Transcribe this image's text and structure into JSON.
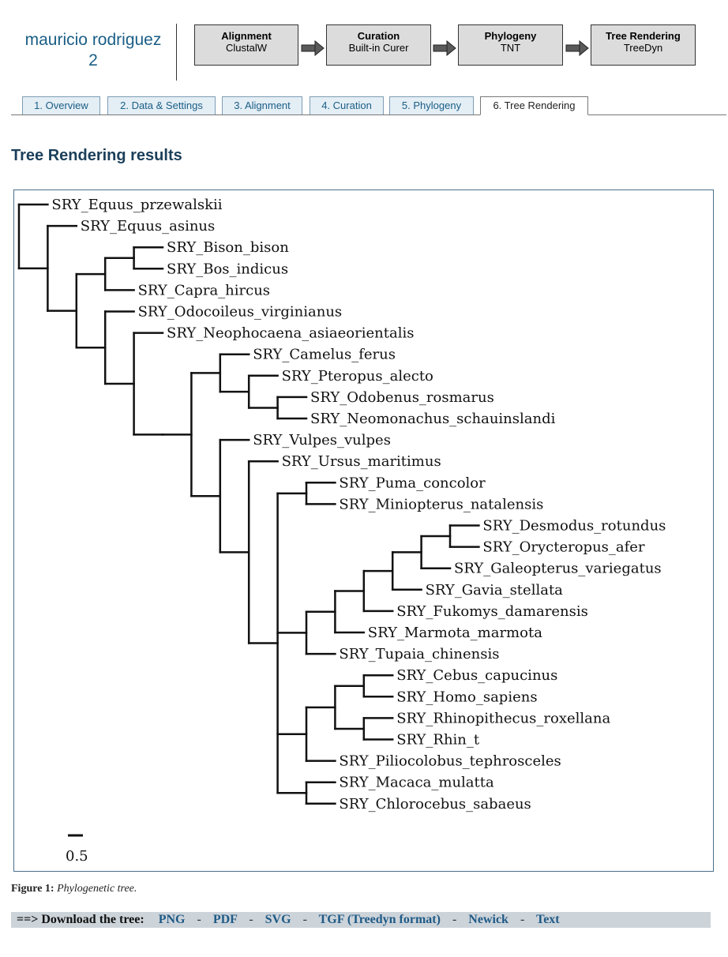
{
  "header": {
    "user_name_line1": "mauricio rodriguez",
    "user_name_line2": "2"
  },
  "pipeline": [
    {
      "title": "Alignment",
      "tool": "ClustalW"
    },
    {
      "title": "Curation",
      "tool": "Built-in Curer"
    },
    {
      "title": "Phylogeny",
      "tool": "TNT"
    },
    {
      "title": "Tree Rendering",
      "tool": "TreeDyn"
    }
  ],
  "tabs": [
    {
      "label": "1. Overview"
    },
    {
      "label": "2. Data & Settings"
    },
    {
      "label": "3. Alignment"
    },
    {
      "label": "4. Curation"
    },
    {
      "label": "5. Phylogeny"
    },
    {
      "label": "6. Tree Rendering",
      "active": true
    }
  ],
  "page_title": "Tree Rendering results",
  "tree": {
    "leaves": [
      "SRY_Equus_przewalskii",
      "SRY_Equus_asinus",
      "SRY_Bison_bison",
      "SRY_Bos_indicus",
      "SRY_Capra_hircus",
      "SRY_Odocoileus_virginianus",
      "SRY_Neophocaena_asiaeorientalis",
      "SRY_Camelus_ferus",
      "SRY_Pteropus_alecto",
      "SRY_Odobenus_rosmarus",
      "SRY_Neomonachus_schauinslandi",
      "SRY_Vulpes_vulpes",
      "SRY_Ursus_maritimus",
      "SRY_Puma_concolor",
      "SRY_Miniopterus_natalensis",
      "SRY_Desmodus_rotundus",
      "SRY_Orycteropus_afer",
      "SRY_Galeopterus_variegatus",
      "SRY_Gavia_stellata",
      "SRY_Fukomys_damarensis",
      "SRY_Marmota_marmota",
      "SRY_Tupaia_chinensis",
      "SRY_Cebus_capucinus",
      "SRY_Homo_sapiens",
      "SRY_Rhinopithecus_roxellana",
      "SRY_Rhin_t",
      "SRY_Piliocolobus_tephrosceles",
      "SRY_Macaca_mulatta",
      "SRY_Chlorocebus_sabaeus"
    ],
    "newick": "(SRY_Chlorocebus_sabaeus:1,(SRY_Macaca_mulatta:1,(((SRY_Rhinopithecus_roxellana:1,SRY_Rhin_t:1):1,SRY_Piliocolobus_tephrosceles:1):1,(SRY_Homo_sapiens:1,(SRY_Cebus_capucinus:1,(((SRY_Tupaia_chinensis:1,(SRY_Marmota_marmota:1,(SRY_Gavia_stellata:1,SRY_Fukomys_damarensis:1):1):1):1,(SRY_Galeopterus_variegatus:1,(SRY_Orycteropus_afer:1,((SRY_Equus_przewalskii:1,SRY_Equus_asinus:1):1,((((((SRY_Bison_bison:1,SRY_Bos_indicus:1):1,SRY_Capra_hircus:1):1,SRY_Odocoileus_virginianus:1):1,SRY_Neophocaena_asiaeorientalis:1):1,SRY_Camelus_ferus:1):1,SRY_Pteropus_alecto:1):1,(((SRY_Odobenus_rosmarus:1,SRY_Neomonachus_schauinslandi:1):1,(SRY_Vulpes_vulpes:1,SRY_Ursus_maritimus:1):1):1,SRY_Puma_concolor:1):1,(SRY_Miniopterus_natalensis:1,SRY_Desmodus_rotundus:1):1):1):1):1):1):1):1):1):1):1);",
    "scale_label": "0.5"
  },
  "figure_caption": {
    "label": "Figure 1:",
    "text": "Phylogenetic tree."
  },
  "download": {
    "label": "==> Download the tree:",
    "links": [
      "PNG",
      "PDF",
      "SVG",
      "TGF (Treedyn format)",
      "Newick",
      "Text"
    ],
    "separator": "-"
  }
}
